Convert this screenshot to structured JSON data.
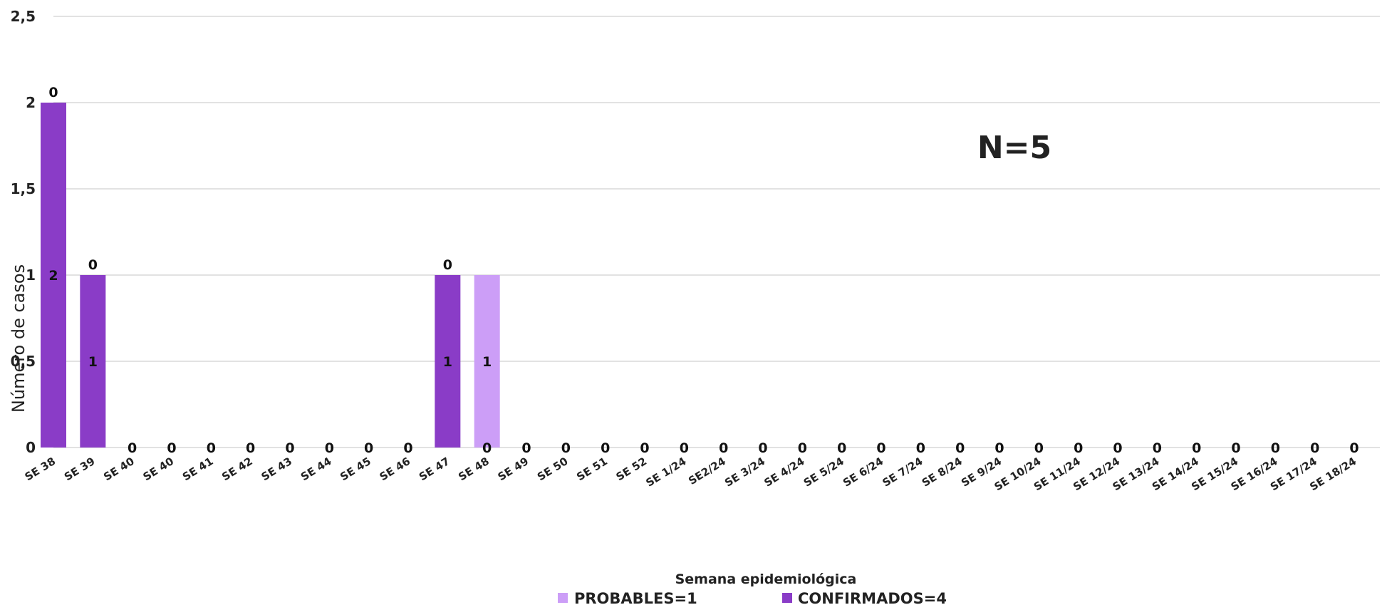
{
  "chart_data": {
    "type": "bar",
    "title": "",
    "xlabel": "Semana epidemiológica",
    "ylabel": "Número de casos",
    "ylim": [
      0,
      2.5
    ],
    "yticks": [
      "0",
      "0,5",
      "1",
      "1,5",
      "2",
      "2,5"
    ],
    "grid": true,
    "legend_position": "bottom",
    "annotation": "N=5",
    "categories": [
      "SE 38",
      "SE 39",
      "SE 40",
      "SE 40",
      "SE 41",
      "SE 42",
      "SE 43",
      "SE 44",
      "SE 45",
      "SE 46",
      "SE 47",
      "SE 48",
      "SE 49",
      "SE 50",
      "SE 51",
      "SE 52",
      "SE 1/24",
      "SE2/24",
      "SE 3/24",
      "SE 4/24",
      "SE 5/24",
      "SE 6/24",
      "SE 7/24",
      "SE 8/24",
      "SE 9/24",
      "SE 10/24",
      "SE 11/24",
      "SE 12/24",
      "SE 13/24",
      "SE 14/24",
      "SE 15/24",
      "SE 16/24",
      "SE 17/24",
      "SE 18/24"
    ],
    "series": [
      {
        "name": "CONFIRMADOS=4",
        "color": "#8a3cc7",
        "values": [
          2,
          1,
          0,
          0,
          0,
          0,
          0,
          0,
          0,
          0,
          1,
          0,
          0,
          0,
          0,
          0,
          0,
          0,
          0,
          0,
          0,
          0,
          0,
          0,
          0,
          0,
          0,
          0,
          0,
          0,
          0,
          0,
          0,
          0
        ],
        "data_labels": [
          "2",
          "1",
          "",
          "",
          "",
          "",
          "",
          "",
          "",
          "",
          "1",
          "0",
          "",
          "",
          "",
          "",
          "",
          "",
          "",
          "",
          "",
          "",
          "",
          "",
          "",
          "",
          "",
          "",
          "",
          "",
          "",
          "",
          "",
          ""
        ]
      },
      {
        "name": "PROBABLES=1",
        "color": "#cc9ef7",
        "values": [
          0,
          0,
          0,
          0,
          0,
          0,
          0,
          0,
          0,
          0,
          0,
          1,
          0,
          0,
          0,
          0,
          0,
          0,
          0,
          0,
          0,
          0,
          0,
          0,
          0,
          0,
          0,
          0,
          0,
          0,
          0,
          0,
          0,
          0
        ],
        "data_labels": [
          "0",
          "0",
          "",
          "",
          "",
          "",
          "",
          "",
          "",
          "",
          "0",
          "1",
          "",
          "",
          "",
          "",
          "",
          "",
          "",
          "",
          "",
          "",
          "",
          "",
          "",
          "",
          "",
          "",
          "",
          "",
          "",
          "",
          "",
          ""
        ]
      }
    ],
    "zero_labels": [
      "",
      "",
      "0",
      "0",
      "0",
      "0",
      "0",
      "0",
      "0",
      "0",
      "",
      "",
      "0",
      "0",
      "0",
      "0",
      "0",
      "0",
      "0",
      "0",
      "0",
      "0",
      "0",
      "0",
      "0",
      "0",
      "0",
      "0",
      "0",
      "0",
      "0",
      "0",
      "0",
      "0"
    ]
  }
}
